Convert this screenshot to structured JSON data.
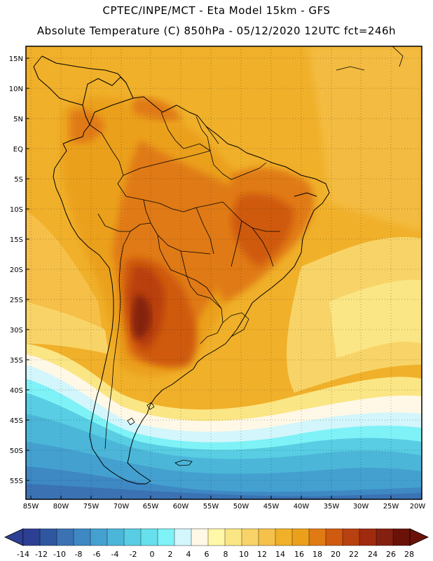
{
  "header": {
    "line1": "CPTEC/INPE/MCT -  Eta Model 15km - GFS",
    "line2": "Absolute Temperature (C) 850hPa - 05/12/2020 12UTC fct=246h"
  },
  "axes": {
    "lat_labels": [
      "15N",
      "10N",
      "5N",
      "EQ",
      "5S",
      "10S",
      "15S",
      "20S",
      "25S",
      "30S",
      "35S",
      "40S",
      "45S",
      "50S",
      "55S"
    ],
    "lon_labels": [
      "85W",
      "80W",
      "75W",
      "70W",
      "65W",
      "60W",
      "55W",
      "50W",
      "45W",
      "40W",
      "35W",
      "30W",
      "25W",
      "20W"
    ]
  },
  "colorbar": {
    "labels": [
      "-14",
      "-12",
      "-10",
      "-8",
      "-6",
      "-4",
      "-2",
      "0",
      "2",
      "4",
      "6",
      "8",
      "10",
      "12",
      "14",
      "16",
      "18",
      "20",
      "22",
      "24",
      "26",
      "28"
    ],
    "colors": [
      "#2d3f92",
      "#2f57a0",
      "#3a72b4",
      "#3e88c4",
      "#44a0cf",
      "#4cb6d9",
      "#58cde3",
      "#66e0ec",
      "#7ef2f6",
      "#d2f6fb",
      "#fff8e6",
      "#fff8a8",
      "#fbe685",
      "#f8d468",
      "#f5c14b",
      "#f0b02a",
      "#eba01c",
      "#e07a14",
      "#cf5a10",
      "#b94010",
      "#a02a0e",
      "#842010",
      "#6a1208"
    ],
    "under_color": "#2d3f92",
    "over_color": "#6a1208"
  }
}
